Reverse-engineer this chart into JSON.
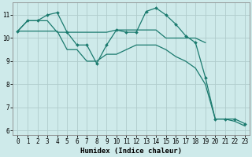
{
  "title": "",
  "xlabel": "Humidex (Indice chaleur)",
  "xlim": [
    -0.5,
    23.5
  ],
  "ylim": [
    5.8,
    11.55
  ],
  "bg_color": "#ceeaea",
  "grid_color": "#b0cccc",
  "line_color": "#1a7a6e",
  "series": [
    {
      "x": [
        0,
        1,
        2,
        3,
        4,
        5,
        6,
        7,
        8,
        9,
        10,
        11,
        12,
        13,
        14,
        15,
        16,
        17,
        18,
        19,
        20,
        21,
        22,
        23
      ],
      "y": [
        10.3,
        10.75,
        10.75,
        11.0,
        11.1,
        10.25,
        9.7,
        9.7,
        8.9,
        9.7,
        10.35,
        10.25,
        10.25,
        11.15,
        11.3,
        11.0,
        10.6,
        10.1,
        9.8,
        8.3,
        6.5,
        6.5,
        6.5,
        6.3
      ],
      "marker": "D",
      "has_markers": true
    },
    {
      "x": [
        0,
        1,
        2,
        3,
        4,
        5,
        6,
        7,
        8,
        9,
        10,
        11,
        12,
        13,
        14,
        15,
        16,
        17,
        18,
        19
      ],
      "y": [
        10.3,
        10.75,
        10.75,
        10.75,
        10.25,
        10.25,
        10.25,
        10.25,
        10.25,
        10.25,
        10.35,
        10.35,
        10.35,
        10.35,
        10.35,
        10.0,
        10.0,
        10.0,
        10.0,
        9.8
      ],
      "marker": null,
      "has_markers": false
    },
    {
      "x": [
        0,
        1,
        2,
        3,
        4,
        5,
        6,
        7,
        8,
        9,
        10,
        11,
        12,
        13,
        14,
        15,
        16,
        17,
        18,
        19,
        20,
        21,
        22,
        23
      ],
      "y": [
        10.3,
        10.3,
        10.3,
        10.3,
        10.3,
        9.5,
        9.5,
        9.0,
        9.0,
        9.3,
        9.3,
        9.5,
        9.7,
        9.7,
        9.7,
        9.5,
        9.2,
        9.0,
        8.7,
        8.0,
        6.5,
        6.5,
        6.4,
        6.2
      ],
      "marker": null,
      "has_markers": false
    }
  ],
  "xticks": [
    0,
    1,
    2,
    3,
    4,
    5,
    6,
    7,
    8,
    9,
    10,
    11,
    12,
    13,
    14,
    15,
    16,
    17,
    18,
    19,
    20,
    21,
    22,
    23
  ],
  "yticks": [
    6,
    7,
    8,
    9,
    10,
    11
  ],
  "tick_fontsize": 5.5,
  "xlabel_fontsize": 6.5
}
